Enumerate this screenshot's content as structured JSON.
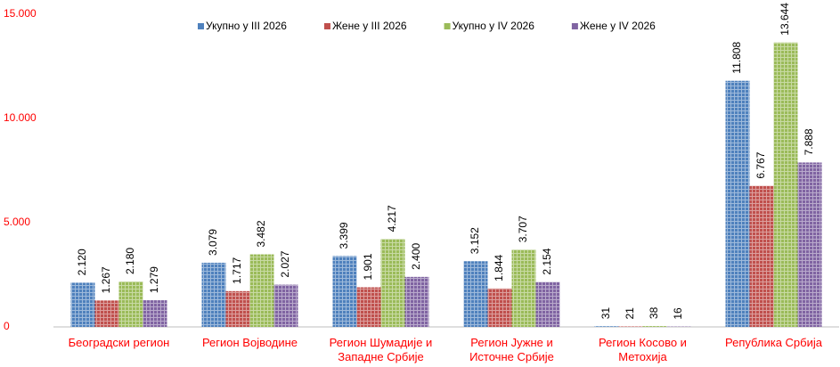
{
  "chart_data": {
    "type": "bar",
    "categories": [
      "Београдски регион",
      "Регион Војводине",
      "Регион Шумадије и Западне Србије",
      "Регион Јужне и Источне Србије",
      "Регион Косово и Метохија",
      "Република Србија"
    ],
    "series": [
      {
        "name": "Укупно у III 2026",
        "color": "#4f81bd",
        "values": [
          2120,
          3079,
          3399,
          3152,
          31,
          11808
        ],
        "value_labels": [
          "2.120",
          "3.079",
          "3.399",
          "3.152",
          "31",
          "11.808"
        ]
      },
      {
        "name": "Жене у III 2026",
        "color": "#c0504d",
        "values": [
          1267,
          1717,
          1901,
          1844,
          21,
          6767
        ],
        "value_labels": [
          "1.267",
          "1.717",
          "1.901",
          "1.844",
          "21",
          "6.767"
        ]
      },
      {
        "name": "Укупно у IV 2026",
        "color": "#9bbb59",
        "values": [
          2180,
          3482,
          4217,
          3707,
          38,
          13644
        ],
        "value_labels": [
          "2.180",
          "3.482",
          "4.217",
          "3.707",
          "38",
          "13.644"
        ]
      },
      {
        "name": "Жене у IV 2026",
        "color": "#8064a2",
        "values": [
          1279,
          2027,
          2400,
          2154,
          16,
          7888
        ],
        "value_labels": [
          "1.279",
          "2.027",
          "2.400",
          "2.154",
          "16",
          "7.888"
        ]
      }
    ],
    "ylim": [
      0,
      15000
    ],
    "yticks": [
      0,
      {
        "value": 5000,
        "label": "5.000"
      },
      {
        "value": 10000,
        "label": "10.000"
      },
      {
        "value": 15000,
        "label": "15.000"
      }
    ],
    "legend": "top"
  }
}
